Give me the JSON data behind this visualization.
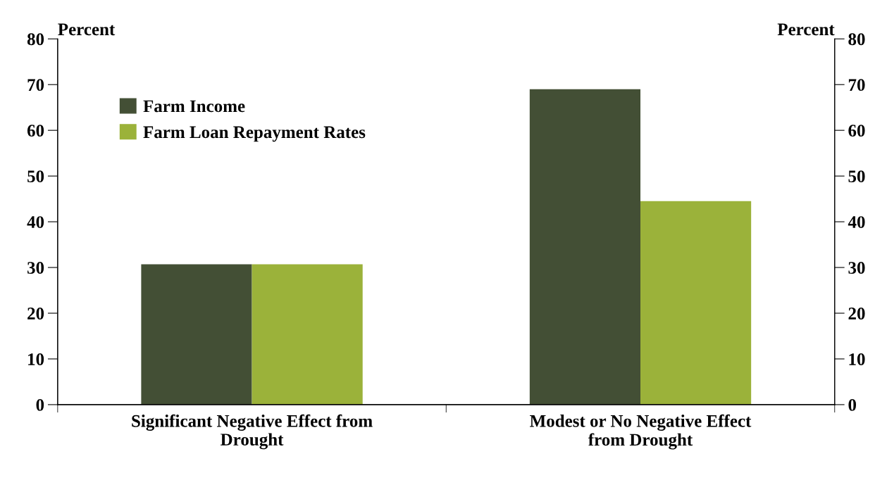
{
  "chart_data": {
    "type": "bar",
    "categories": [
      "Significant Negative Effect from\nDrought",
      "Modest or No Negative Effect\nfrom Drought"
    ],
    "series": [
      {
        "name": "Farm Income",
        "color": "#434f35",
        "values": [
          30.7,
          69
        ]
      },
      {
        "name": "Farm Loan Repayment Rates",
        "color": "#9bb23a",
        "values": [
          30.7,
          44.5
        ]
      }
    ],
    "ylabel": "Percent",
    "y2label": "Percent",
    "ylim": [
      0,
      80
    ],
    "yticks": [
      0,
      10,
      20,
      30,
      40,
      50,
      60,
      70,
      80
    ],
    "y2lim": [
      0,
      80
    ],
    "y2ticks": [
      0,
      10,
      20,
      30,
      40,
      50,
      60,
      70,
      80
    ],
    "grid": false,
    "legend": "top left"
  }
}
